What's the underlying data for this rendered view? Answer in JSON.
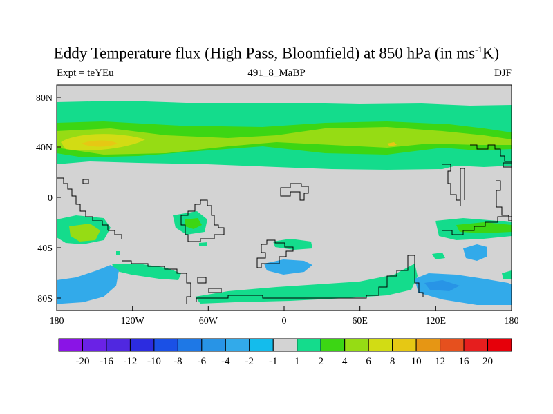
{
  "title": {
    "main": "Eddy Temperature flux (High Pass, Bloomfield) at 850 hPa (in ms",
    "superscript": "-1",
    "end": "K)"
  },
  "subtitle": {
    "left": "Expt = teYEu",
    "center": "491_8_MaBP",
    "right": "DJF"
  },
  "map": {
    "x_ticks": [
      "180",
      "120W",
      "60W",
      "0",
      "60E",
      "120E",
      "180"
    ],
    "y_ticks": [
      "80N",
      "40N",
      "0",
      "40S",
      "80S"
    ],
    "background_color": "#d3d3d3",
    "coastline_color": "#000000"
  },
  "colorbar": {
    "labels": [
      "-20",
      "-16",
      "-12",
      "-10",
      "-8",
      "-6",
      "-4",
      "-2",
      "-1",
      "1",
      "2",
      "4",
      "6",
      "8",
      "10",
      "12",
      "16",
      "20"
    ],
    "colors": [
      "#8a14e6",
      "#6a22e6",
      "#5028e0",
      "#2c2ce0",
      "#1a50e6",
      "#1e78e6",
      "#2894e6",
      "#32aaea",
      "#14bcec",
      "#d3d3d3",
      "#14dc8c",
      "#3cd614",
      "#96dc14",
      "#d2dc14",
      "#e6c814",
      "#e69614",
      "#e6501e",
      "#e61e1e",
      "#e6000a"
    ]
  }
}
